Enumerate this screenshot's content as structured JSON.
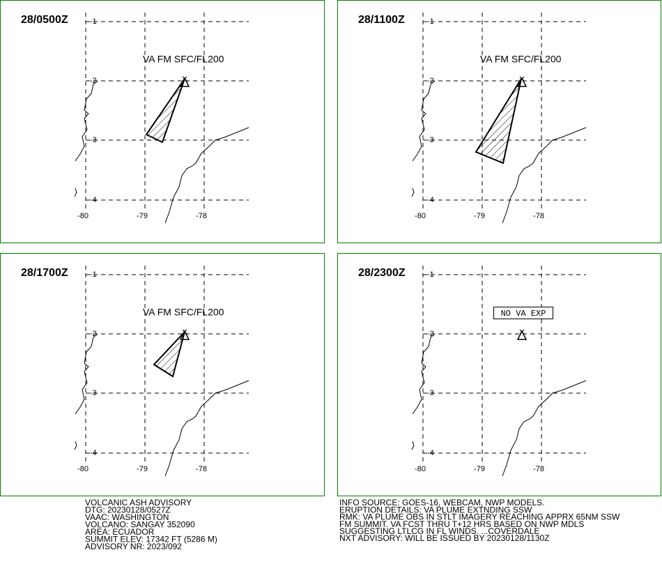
{
  "panels": [
    {
      "time": "28/0500Z",
      "label": "VA FM SFC/FL200"
    },
    {
      "time": "28/1100Z",
      "label": "VA FM SFC/FL200"
    },
    {
      "time": "28/1700Z",
      "label": "VA FM SFC/FL200"
    },
    {
      "time": "28/2300Z",
      "label": "NO VA EXP"
    }
  ],
  "latitude_labels": [
    "-1",
    "-2",
    "-3",
    "-4"
  ],
  "longitude_labels": [
    "-80",
    "-79",
    "-78"
  ],
  "advisory_left": [
    "VOLCANIC ASH ADVISORY",
    "DTG: 20230128/0527Z",
    "VAAC: WASHINGTON",
    "VOLCANO: SANGAY 352090",
    "AREA: ECUADOR",
    "SUMMIT ELEV: 17342 FT (5286 M)",
    "ADVISORY NR: 2023/092"
  ],
  "advisory_right": [
    "INFO SOURCE: GOES-16, WEBCAM, NWP MODELS.",
    "ERUPTION DETAILS: VA PLUME EXTNDING SSW",
    "RMK: VA PLUME OBS IN STLT IMAGERY REACHING APPRX 65NM SSW",
    "FM SUMMIT. VA FCST THRU T+12 HRS BASED ON NWP MDLS",
    "SUGGESTING LTLCG IN FL WINDS. ...COVERDALE",
    "NXT ADVISORY: WILL BE ISSUED BY 20230128/1130Z"
  ]
}
